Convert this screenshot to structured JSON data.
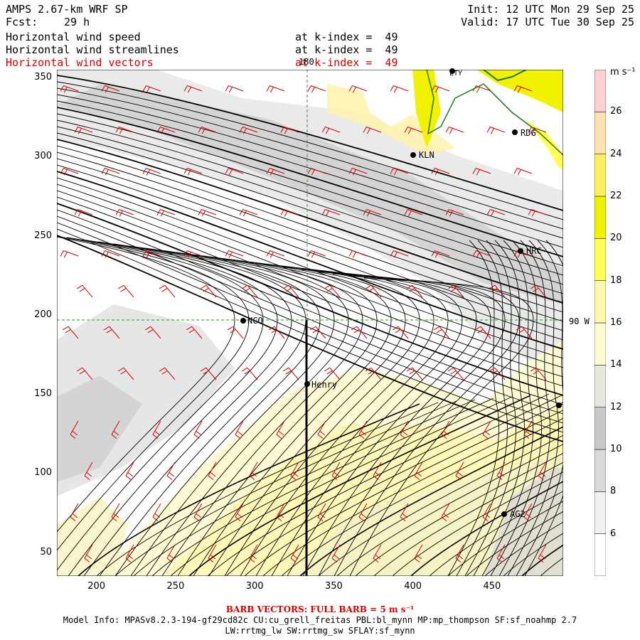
{
  "header": {
    "title": "AMPS 2.67-km WRF SP",
    "fcst_label": "Fcst:",
    "fcst_value": "29 h",
    "init": "Init: 12 UTC Mon 29 Sep 25",
    "valid": "Valid: 17 UTC Tue 30 Sep 25",
    "fields": [
      {
        "name": "Horizontal wind speed",
        "level": "at k-index =  49",
        "color": "#000000"
      },
      {
        "name": "Horizontal wind streamlines",
        "level": "at k-index =  49",
        "color": "#000000"
      },
      {
        "name": "Horizontal wind vectors",
        "level": "at k-index =  49",
        "color": "#d40000"
      }
    ]
  },
  "map": {
    "x_ticks": [
      "200",
      "250",
      "300",
      "350",
      "400",
      "450"
    ],
    "y_ticks": [
      "50",
      "100",
      "150",
      "200",
      "250",
      "300",
      "350"
    ],
    "meridian_label": "180",
    "parallel_label": "90 W",
    "stations": [
      {
        "name": "NCO"
      },
      {
        "name": "Henry"
      },
      {
        "name": "KLN"
      },
      {
        "name": "RDG"
      },
      {
        "name": "HRC"
      },
      {
        "name": "AG2"
      },
      {
        "name": "LTY"
      }
    ]
  },
  "colorbar": {
    "unit": "m s⁻¹",
    "labels": [
      "6",
      "8",
      "10",
      "12",
      "14",
      "16",
      "18",
      "20",
      "22",
      "24",
      "26"
    ],
    "colors": [
      "#ffffff",
      "#f0f0f0",
      "#d9d9d9",
      "#c8c8c8",
      "#e6e6dc",
      "#fffbd2",
      "#fff7aa",
      "#ffff55",
      "#f2f200",
      "#ffee60",
      "#ffe0b0",
      "#ffd0d0"
    ]
  },
  "footer": {
    "barb_note": "BARB VECTORS:  FULL BARB = 5 m s⁻¹",
    "model_info": "Model Info: MPASv8.2.3-194-gf29cd82c CU:cu_grell_freitas PBL:bl_mynn MP:mp_thompson SF:sf_noahmp 2.7",
    "model_info_2": "LW:rrtmg_lw SW:rrtmg_sw SFLAY:sf_mynn"
  }
}
